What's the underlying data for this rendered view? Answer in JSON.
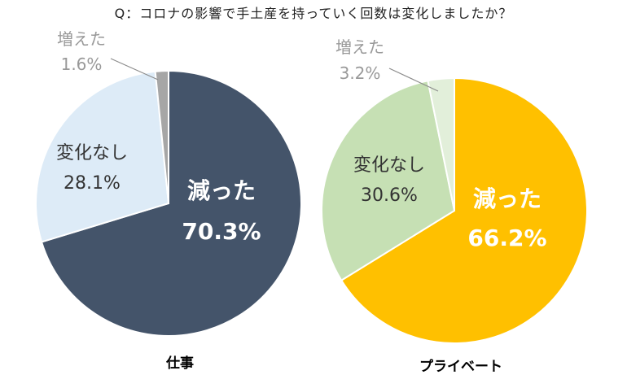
{
  "chart_data": {
    "title": "Q：コロナの影響で手土産を持っていく回数は変化しましたか？",
    "charts": [
      {
        "type": "pie",
        "name": "仕事",
        "slices": [
          {
            "label": "減った",
            "value": 70.3,
            "value_label": "70.3%",
            "color": "#44546A"
          },
          {
            "label": "変化なし",
            "value": 28.1,
            "value_label": "28.1%",
            "color": "#DDEBF7"
          },
          {
            "label": "増えた",
            "value": 1.6,
            "value_label": "1.6%",
            "color": "#A6A6A6"
          }
        ]
      },
      {
        "type": "pie",
        "name": "プライベート",
        "slices": [
          {
            "label": "減った",
            "value": 66.2,
            "value_label": "66.2%",
            "color": "#FFC000"
          },
          {
            "label": "変化なし",
            "value": 30.6,
            "value_label": "30.6%",
            "color": "#C6E0B4"
          },
          {
            "label": "増えた",
            "value": 3.2,
            "value_label": "3.2%",
            "color": "#E2EFDA"
          }
        ]
      }
    ]
  }
}
